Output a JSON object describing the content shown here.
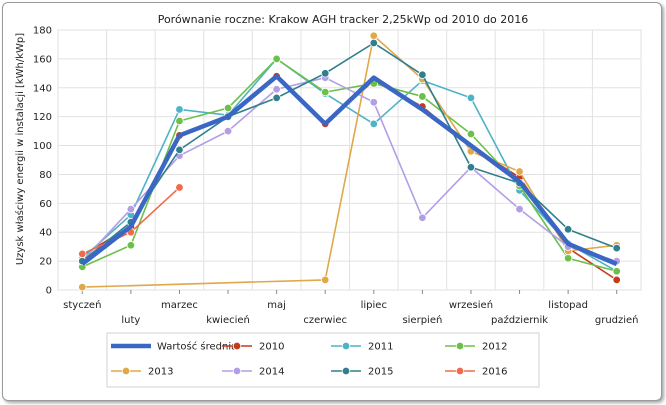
{
  "chart_data": {
    "type": "line",
    "title": "Porównanie roczne: Krakow AGH tracker 2,25kWp od 2010 do 2016",
    "xlabel": "",
    "ylabel": "Uzysk właściwy energii w instalacji [kWh/kWp]",
    "ylim": [
      0,
      180
    ],
    "yticks": [
      0,
      20,
      40,
      60,
      80,
      100,
      120,
      140,
      160,
      180
    ],
    "grid": true,
    "legend_position": "bottom",
    "categories": [
      "styczeń",
      "luty",
      "marzec",
      "kwiecień",
      "maj",
      "czerwiec",
      "lipiec",
      "sierpień",
      "wrzesień",
      "październik",
      "listopad",
      "grudzień"
    ],
    "series": [
      {
        "name": "Wartość średnia",
        "color": "#3a66c4",
        "values": [
          18,
          44,
          107,
          120,
          148,
          115,
          147,
          125,
          100,
          75,
          32,
          18
        ]
      },
      {
        "name": "2010",
        "color": "#c63a1a",
        "values": [
          24,
          44,
          107,
          121,
          148,
          115,
          145,
          127,
          99,
          78,
          29,
          7
        ]
      },
      {
        "name": "2011",
        "color": "#4fb3c7",
        "values": [
          22,
          52,
          125,
          121,
          160,
          136,
          115,
          145,
          133,
          69,
          32,
          13
        ]
      },
      {
        "name": "2012",
        "color": "#6cc04a",
        "values": [
          16,
          31,
          117,
          126,
          160,
          137,
          143,
          134,
          108,
          72,
          22,
          13
        ]
      },
      {
        "name": "2013",
        "color": "#e0a84a",
        "values": [
          2,
          null,
          null,
          null,
          null,
          7,
          176,
          146,
          96,
          82,
          27,
          31
        ]
      },
      {
        "name": "2014",
        "color": "#b39ee6",
        "values": [
          20,
          56,
          93,
          110,
          139,
          147,
          130,
          50,
          85,
          56,
          30,
          20
        ]
      },
      {
        "name": "2015",
        "color": "#2f7f8c",
        "values": [
          20,
          47,
          97,
          120,
          133,
          150,
          171,
          149,
          85,
          74,
          42,
          29
        ]
      },
      {
        "name": "2016",
        "color": "#f06a4c",
        "values": [
          25,
          40,
          71,
          null,
          null,
          null,
          null,
          null,
          null,
          null,
          null,
          null
        ]
      }
    ]
  }
}
